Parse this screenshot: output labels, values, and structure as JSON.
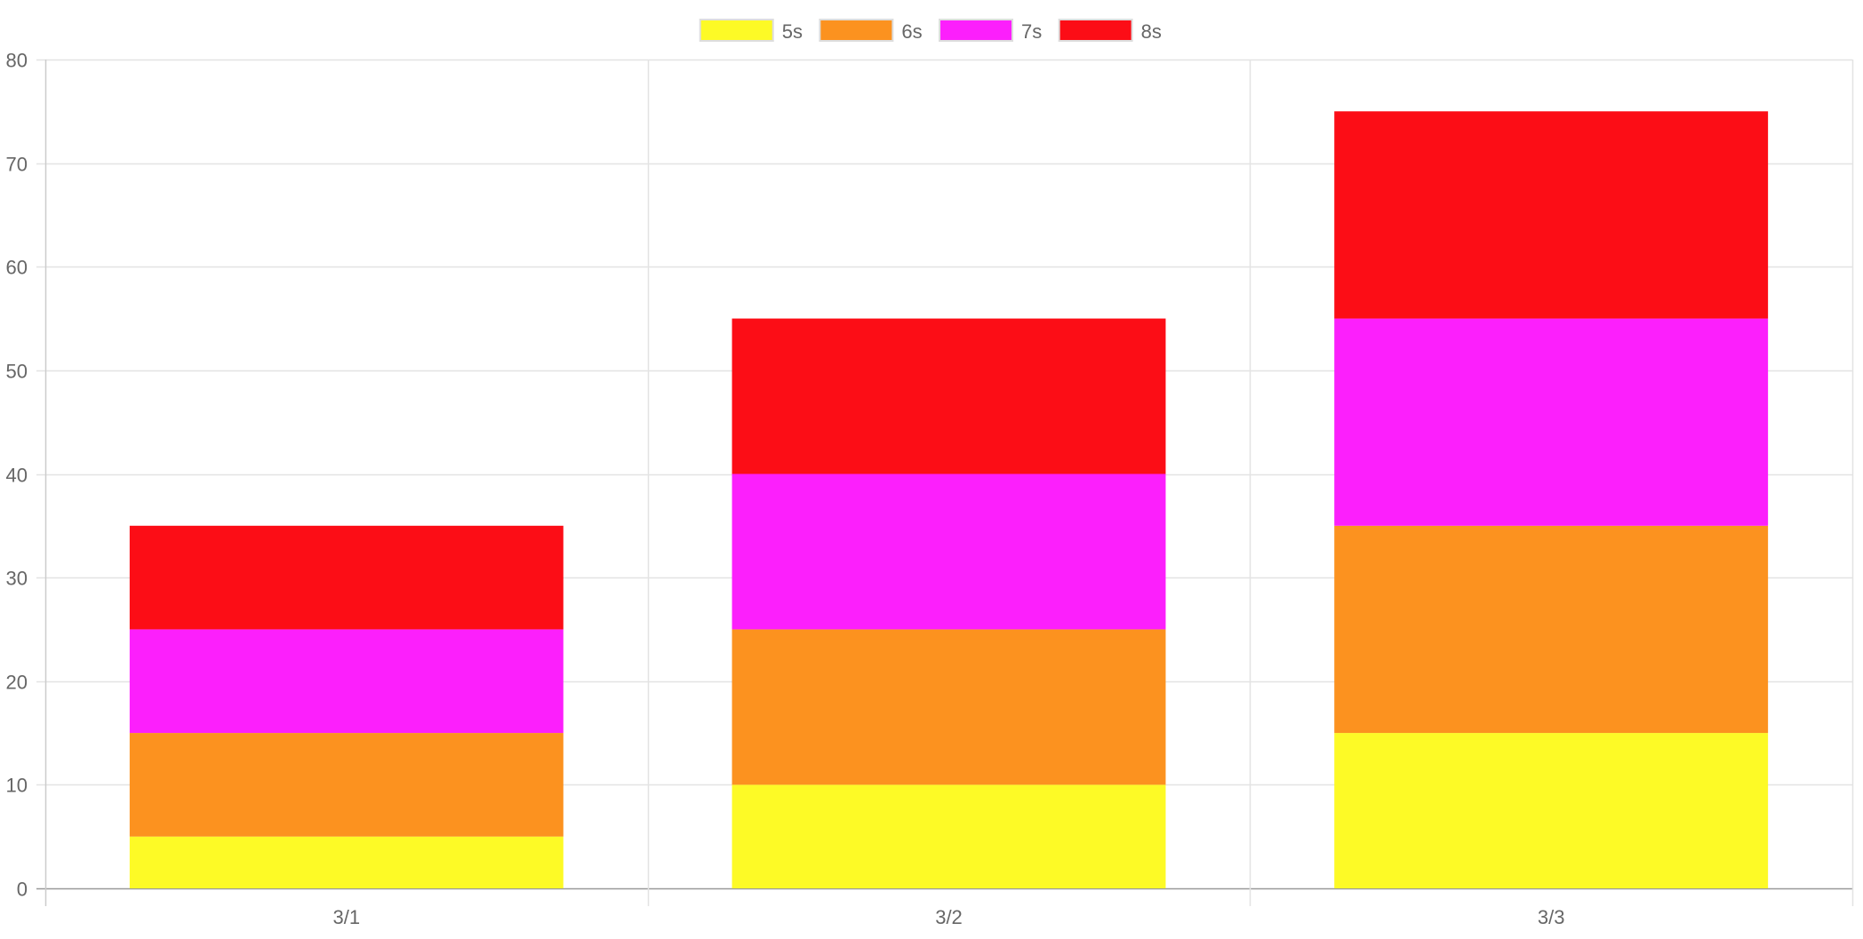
{
  "chart_data": {
    "type": "bar",
    "stacked": true,
    "categories": [
      "3/1",
      "3/2",
      "3/3"
    ],
    "series": [
      {
        "name": "5s",
        "values": [
          5,
          10,
          15
        ],
        "color": "#FDFA26"
      },
      {
        "name": "6s",
        "values": [
          10,
          15,
          20
        ],
        "color": "#FC921F"
      },
      {
        "name": "7s",
        "values": [
          10,
          15,
          20
        ],
        "color": "#FC1FFC"
      },
      {
        "name": "8s",
        "values": [
          10,
          15,
          20
        ],
        "color": "#FC0D16"
      }
    ],
    "ylim": [
      0,
      80
    ],
    "yticks": [
      "0",
      "10",
      "20",
      "30",
      "40",
      "50",
      "60",
      "70",
      "80"
    ],
    "grid": true,
    "legend": "top-center",
    "title": "",
    "xlabel": "",
    "ylabel": ""
  }
}
